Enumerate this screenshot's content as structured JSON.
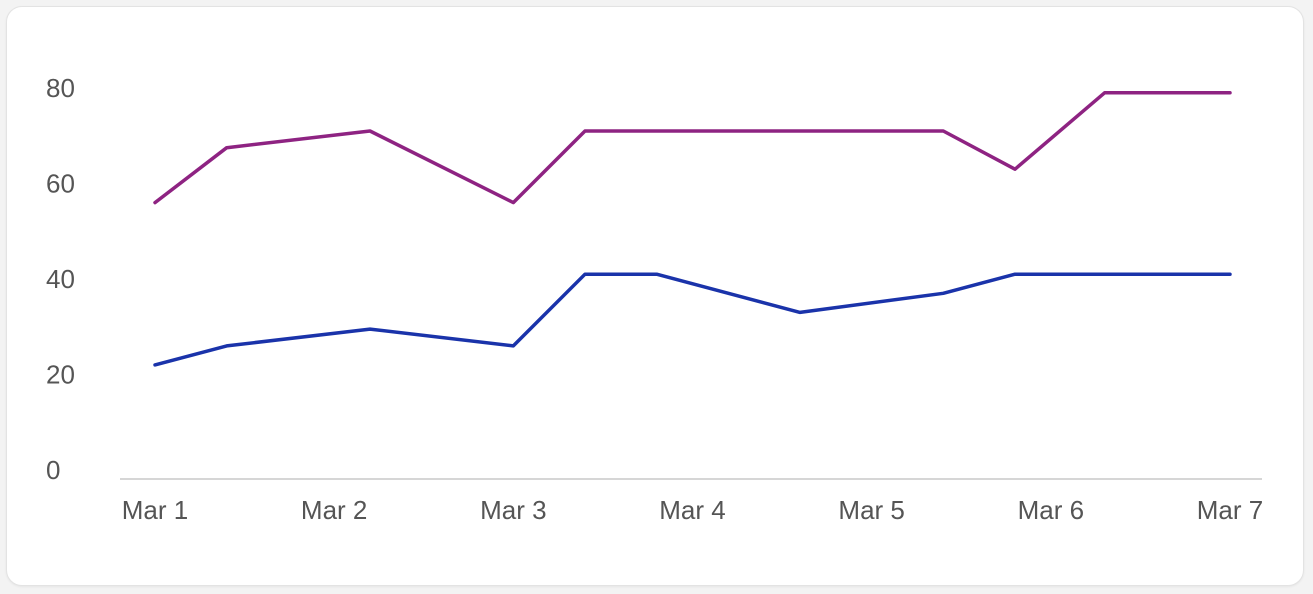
{
  "chart_data": {
    "type": "line",
    "title": "",
    "xlabel": "",
    "ylabel": "",
    "x_ticks": [
      "Mar 1",
      "Mar 2",
      "Mar 3",
      "Mar 4",
      "Mar 5",
      "Mar 6",
      "Mar 7"
    ],
    "x": [
      1,
      1.4,
      2.2,
      3,
      3.4,
      3.8,
      4.6,
      5.4,
      5.8,
      6.3,
      7
    ],
    "xlim": [
      1,
      7
    ],
    "y_ticks": [
      0,
      20,
      40,
      60,
      80
    ],
    "ylim": [
      0,
      82
    ],
    "grid": false,
    "legend": "none",
    "series": [
      {
        "color": "#8e2382",
        "values": [
          56,
          67.5,
          71,
          56,
          71,
          71,
          71,
          71,
          63,
          79,
          79
        ]
      },
      {
        "color": "#1a33aa",
        "values": [
          22,
          26,
          29.5,
          26,
          41,
          41,
          33,
          37,
          41,
          41,
          41
        ]
      }
    ]
  }
}
